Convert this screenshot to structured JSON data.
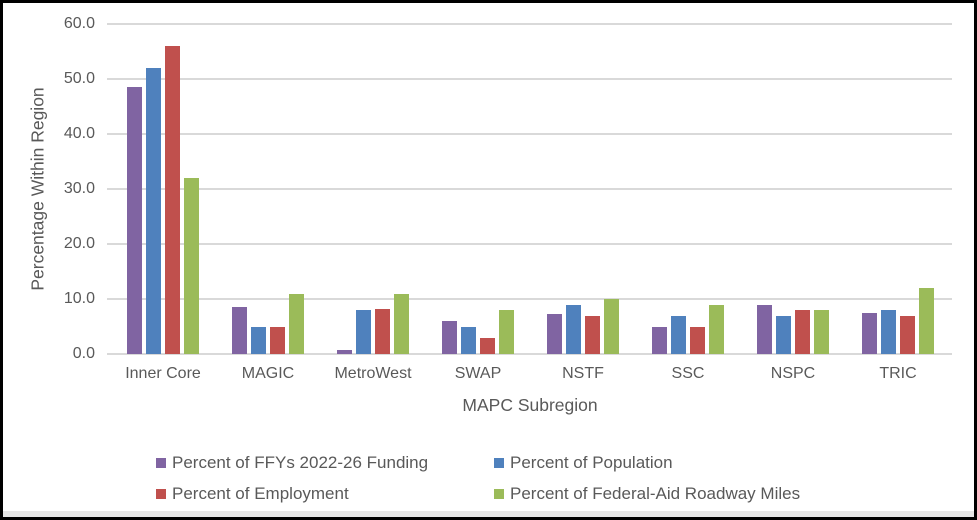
{
  "window": {
    "background": "#FFFFFF",
    "border_color": "#000000",
    "footer_strip_color": "#E6E6E6"
  },
  "chart_data": {
    "type": "bar",
    "title": "",
    "xlabel": "MAPC Subregion",
    "ylabel": "Percentage Within Region",
    "ylim": [
      0,
      60
    ],
    "ytick_step": 10,
    "ytick_labels": [
      "0.0",
      "10.0",
      "20.0",
      "30.0",
      "40.0",
      "50.0",
      "60.0"
    ],
    "grid": true,
    "gridline_color": "#D9D9D9",
    "text_color": "#595959",
    "legend_position": "bottom",
    "categories": [
      "Inner Core",
      "MAGIC",
      "MetroWest",
      "SWAP",
      "NSTF",
      "SSC",
      "NSPC",
      "TRIC"
    ],
    "series": [
      {
        "name": "Percent of FFYs 2022-26 Funding",
        "color": "#8064A2",
        "values": [
          48.5,
          8.5,
          0.7,
          6.0,
          7.2,
          5.0,
          9.0,
          7.4
        ]
      },
      {
        "name": "Percent of Population",
        "color": "#4F81BD",
        "values": [
          52.0,
          5.0,
          8.0,
          5.0,
          9.0,
          7.0,
          7.0,
          8.0
        ]
      },
      {
        "name": "Percent of Employment",
        "color": "#C0504D",
        "values": [
          56.0,
          5.0,
          8.2,
          3.0,
          7.0,
          5.0,
          8.0,
          7.0
        ]
      },
      {
        "name": "Percent of Federal-Aid Roadway Miles",
        "color": "#9BBB59",
        "values": [
          32.0,
          11.0,
          11.0,
          8.0,
          10.0,
          9.0,
          8.0,
          12.0
        ]
      }
    ]
  }
}
